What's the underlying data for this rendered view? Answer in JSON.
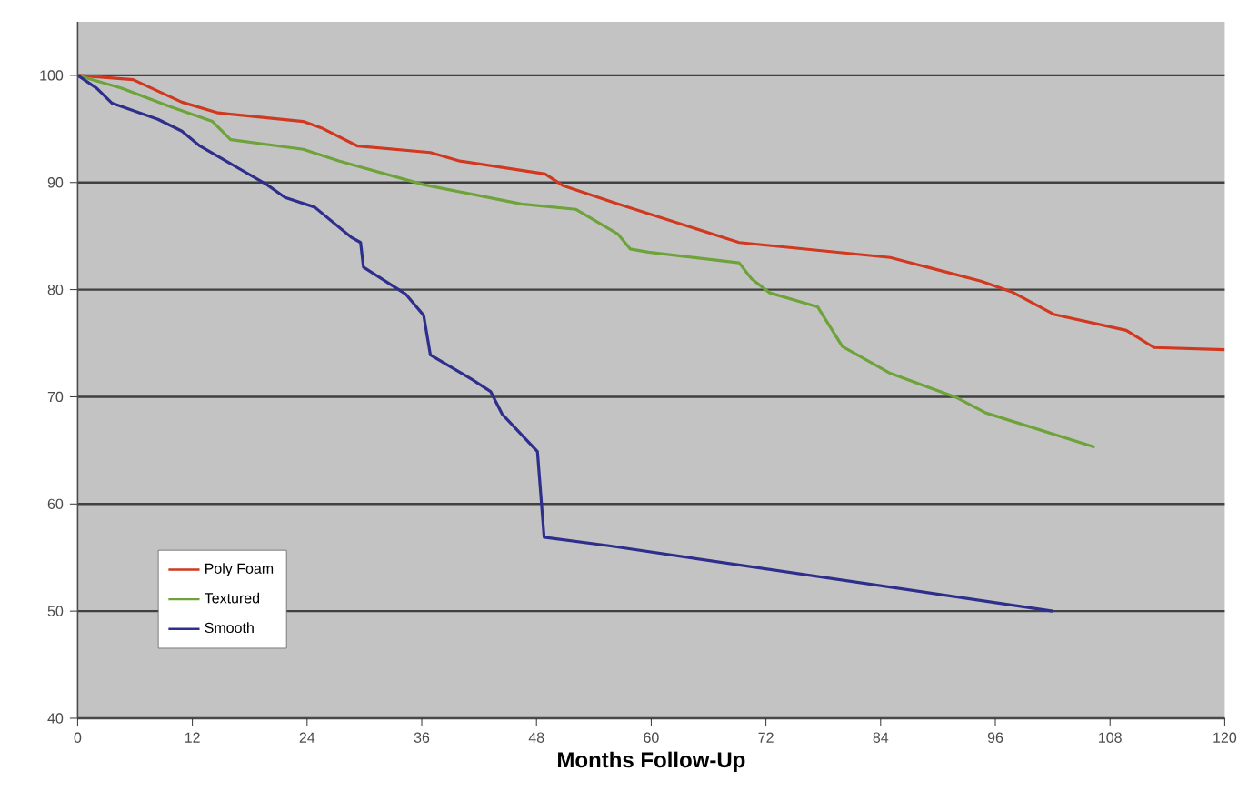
{
  "chart_data": {
    "type": "line",
    "xlabel": "Months Follow-Up",
    "xlim": [
      0,
      120
    ],
    "xticks": [
      0,
      12,
      24,
      36,
      48,
      60,
      72,
      84,
      96,
      108,
      120
    ],
    "ylim": [
      40,
      105
    ],
    "yticks": [
      40,
      50,
      60,
      70,
      80,
      90,
      100
    ],
    "grid": "y",
    "legend": "bottom left",
    "marker": "none",
    "line_style": "solid",
    "series": [
      {
        "name": "Poly Foam",
        "color": "#d0391f",
        "x": [
          0,
          5.8,
          10.9,
          14.7,
          23.6,
          25.5,
          29.3,
          36.9,
          40,
          48.9,
          50.8,
          56.5,
          69.2,
          85,
          94.5,
          97.7,
          102.1,
          109.7,
          112.6,
          120
        ],
        "values": [
          100,
          99.6,
          97.5,
          96.5,
          95.7,
          95.1,
          93.4,
          92.8,
          92,
          90.8,
          89.7,
          88,
          84.4,
          83,
          80.8,
          79.8,
          77.7,
          76.2,
          74.6,
          74.4
        ]
      },
      {
        "name": "Textured",
        "color": "#6da33a",
        "x": [
          0,
          4.6,
          9.6,
          14.1,
          16,
          23.6,
          27.4,
          36.2,
          46.4,
          52.1,
          56.5,
          57.8,
          59.7,
          69.2,
          70.5,
          72.4,
          77.4,
          80,
          85,
          92,
          95,
          106.4
        ],
        "values": [
          100,
          98.8,
          97.1,
          95.7,
          94,
          93.1,
          92,
          89.8,
          88,
          87.5,
          85.2,
          83.8,
          83.5,
          82.5,
          81,
          79.7,
          78.4,
          74.7,
          72.2,
          69.9,
          68.5,
          65.3
        ]
      },
      {
        "name": "Smooth",
        "color": "#2e2f8c",
        "x": [
          0,
          2,
          3.6,
          8.4,
          10.9,
          12.8,
          19.8,
          21.7,
          24.8,
          28.6,
          29.6,
          29.9,
          34.3,
          36.2,
          36.9,
          41.3,
          43.2,
          44.4,
          48.1,
          48.8,
          55.6,
          102
        ],
        "values": [
          100,
          98.8,
          97.4,
          95.9,
          94.8,
          93.4,
          89.8,
          88.6,
          87.7,
          84.9,
          84.4,
          82.1,
          79.6,
          77.6,
          73.9,
          71.6,
          70.5,
          68.4,
          64.9,
          56.9,
          56.1,
          50
        ]
      }
    ]
  }
}
